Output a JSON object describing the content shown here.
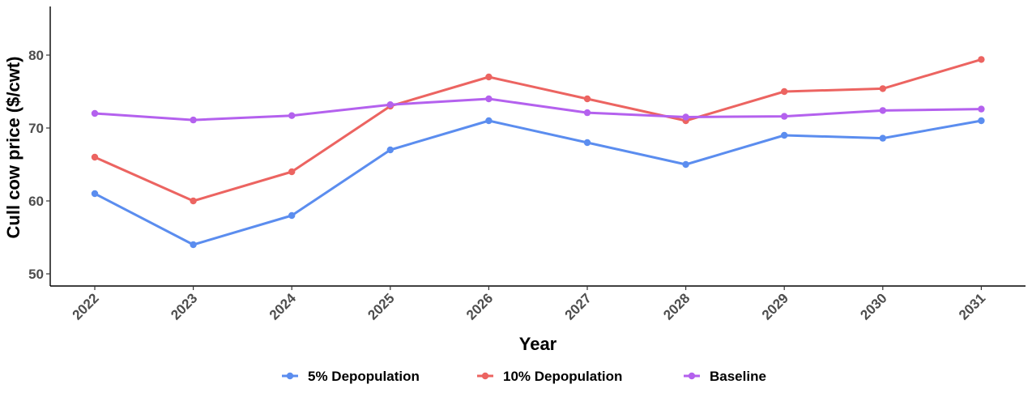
{
  "chart_data": {
    "type": "line",
    "x": [
      "2022",
      "2023",
      "2024",
      "2025",
      "2026",
      "2027",
      "2028",
      "2029",
      "2030",
      "2031"
    ],
    "series": [
      {
        "name": "5% Depopulation",
        "color": "#5B8DEF",
        "values": [
          61,
          54,
          58,
          67,
          71,
          68,
          65,
          69,
          68.6,
          71
        ]
      },
      {
        "name": "10% Depopulation",
        "color": "#EC6461",
        "values": [
          66,
          60,
          64,
          73,
          77,
          74,
          71,
          75,
          75.4,
          79.4
        ]
      },
      {
        "name": "Baseline",
        "color": "#B461EE",
        "values": [
          72,
          71.1,
          71.7,
          73.2,
          74,
          72.1,
          71.5,
          71.6,
          72.4,
          72.6
        ]
      }
    ],
    "xlabel": "Year",
    "ylabel": "Cull cow price ($/cwt)",
    "ylim": [
      48,
      87
    ],
    "yticks": [
      50,
      60,
      70,
      80
    ],
    "grid": false,
    "legend_position": "bottom"
  }
}
